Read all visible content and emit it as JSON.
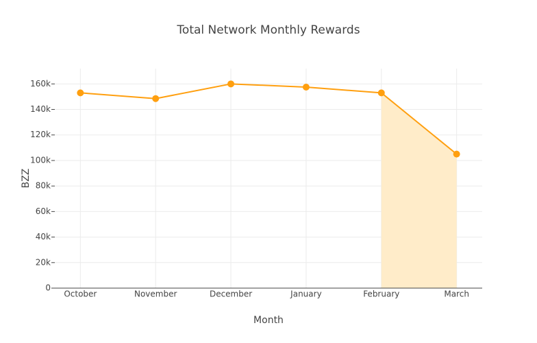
{
  "chart_data": {
    "type": "line",
    "title": "Total Network Monthly Rewards",
    "x_label": "Month",
    "y_label": "BZZ",
    "categories": [
      "October",
      "November",
      "December",
      "January",
      "February",
      "March"
    ],
    "values": [
      153000,
      148500,
      160000,
      157500,
      153000,
      105000
    ],
    "color": "#ff9f0f",
    "shaded_span": {
      "start": "February",
      "end": "March",
      "color": "#ffecc9"
    },
    "ylim": [
      0,
      172000
    ],
    "yticks": [
      0,
      {
        "value": 20000,
        "label": "20k"
      },
      {
        "value": 40000,
        "label": "40k"
      },
      {
        "value": 60000,
        "label": "60k"
      },
      {
        "value": 80000,
        "label": "80k"
      },
      {
        "value": 100000,
        "label": "100k"
      },
      {
        "value": 120000,
        "label": "120k"
      },
      {
        "value": 140000,
        "label": "140k"
      },
      {
        "value": 160000,
        "label": "160k"
      }
    ],
    "grid": true
  }
}
